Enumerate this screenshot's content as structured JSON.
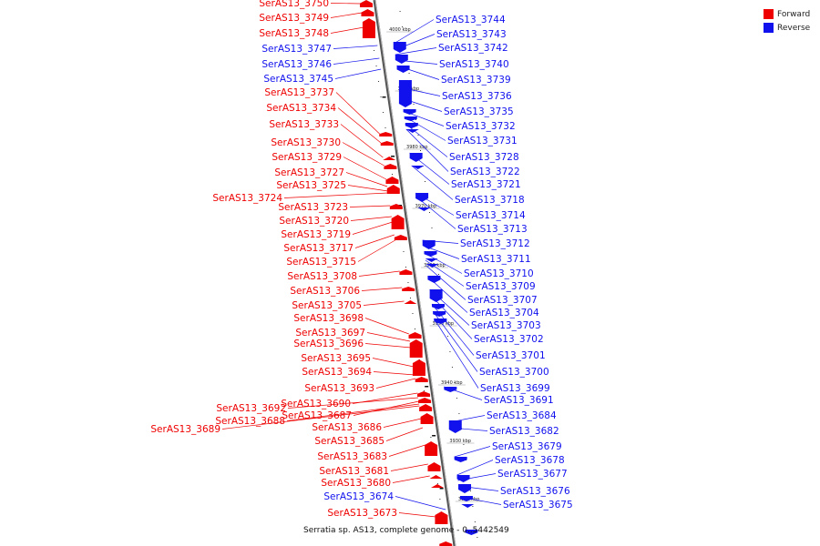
{
  "legend": {
    "forward_label": "Forward",
    "reverse_label": "Reverse",
    "forward_color": "#ee0000",
    "reverse_color": "#1111ee"
  },
  "caption": "Serratia sp. AS13, complete genome - 0..5442549",
  "scale_ticks": [
    "4000 kbp",
    "3990 kbp",
    "3980 kbp",
    "3970 kbp",
    "3960 kbp",
    "3950 kbp",
    "3940 kbp",
    "3930 kbp",
    "3920 kbp"
  ],
  "forward_genes": [
    "SerAS13_3750",
    "SerAS13_3749",
    "SerAS13_3748",
    "SerAS13_3737",
    "SerAS13_3734",
    "SerAS13_3733",
    "SerAS13_3730",
    "SerAS13_3729",
    "SerAS13_3727",
    "SerAS13_3725",
    "SerAS13_3724",
    "SerAS13_3723",
    "SerAS13_3720",
    "SerAS13_3719",
    "SerAS13_3717",
    "SerAS13_3715",
    "SerAS13_3708",
    "SerAS13_3706",
    "SerAS13_3705",
    "SerAS13_3698",
    "SerAS13_3697",
    "SerAS13_3696",
    "SerAS13_3695",
    "SerAS13_3694",
    "SerAS13_3693",
    "SerAS13_3690",
    "SerAS13_3692",
    "SerAS13_3687",
    "SerAS13_3688",
    "SerAS13_3689",
    "SerAS13_3686",
    "SerAS13_3685",
    "SerAS13_3683",
    "SerAS13_3681",
    "SerAS13_3680",
    "SerAS13_3673"
  ],
  "reverse_genes_left": [
    "SerAS13_3747",
    "SerAS13_3746",
    "SerAS13_3745",
    "SerAS13_3674"
  ],
  "reverse_genes_right": [
    "SerAS13_3744",
    "SerAS13_3743",
    "SerAS13_3742",
    "SerAS13_3740",
    "SerAS13_3739",
    "SerAS13_3736",
    "SerAS13_3735",
    "SerAS13_3732",
    "SerAS13_3731",
    "SerAS13_3728",
    "SerAS13_3722",
    "SerAS13_3721",
    "SerAS13_3718",
    "SerAS13_3714",
    "SerAS13_3713",
    "SerAS13_3712",
    "SerAS13_3711",
    "SerAS13_3710",
    "SerAS13_3709",
    "SerAS13_3707",
    "SerAS13_3704",
    "SerAS13_3703",
    "SerAS13_3702",
    "SerAS13_3701",
    "SerAS13_3700",
    "SerAS13_3699",
    "SerAS13_3691",
    "SerAS13_3684",
    "SerAS13_3682",
    "SerAS13_3679",
    "SerAS13_3678",
    "SerAS13_3677",
    "SerAS13_3676",
    "SerAS13_3675"
  ]
}
